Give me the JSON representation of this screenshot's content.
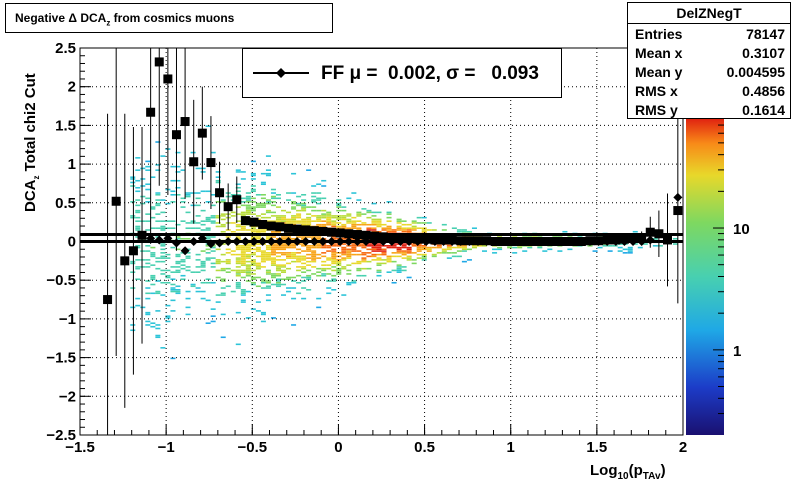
{
  "title": {
    "pre": "Negative ",
    "delta": "Δ",
    "dca": " DCA",
    "sub": "z",
    "post": "  from cosmics muons"
  },
  "stats": {
    "name": "DelZNegT",
    "rows": [
      {
        "key": "Entries",
        "value": "78147"
      },
      {
        "key": "Mean x",
        "value": "0.3107"
      },
      {
        "key": "Mean y",
        "value": "0.004595"
      },
      {
        "key": "RMS x",
        "value": "0.4856"
      },
      {
        "key": "RMS y",
        "value": "0.1614"
      }
    ]
  },
  "legend": {
    "text": "FF μ =  0.002, σ =   0.093"
  },
  "colors": {
    "marker": "#000000",
    "frame": "#000000",
    "grid": "#000000"
  },
  "chart_data": {
    "type": "heatmap",
    "xlabel": "Log10(pTAv)",
    "xlabel_main": "Log",
    "xlabel_sub": "10",
    "xlabel_open": "(p",
    "xlabel_sub2": "TAv",
    "xlabel_close": ")",
    "ylabel": "DCAz  Total chi2 Cut",
    "ylabel_main": "DCA",
    "ylabel_sub": "z",
    "ylabel_post": "  Total chi2 Cut",
    "xlim": [
      -1.5,
      2
    ],
    "ylim": [
      -2.5,
      2.5
    ],
    "x_ticks": [
      -1.5,
      -1,
      -0.5,
      0,
      0.5,
      1,
      1.5,
      2
    ],
    "x_tick_labels": [
      "−1.5",
      "−1",
      "−0.5",
      "0",
      "0.5",
      "1",
      "1.5",
      "2"
    ],
    "y_ticks": [
      -2.5,
      -2,
      -1.5,
      -1,
      -0.5,
      0,
      0.5,
      1,
      1.5,
      2,
      2.5
    ],
    "y_tick_labels": [
      "−2.5",
      "−2",
      "−1.5",
      "−1",
      "−0.5",
      "0",
      "0.5",
      "1",
      "1.5",
      "2",
      "2.5"
    ],
    "grid": true,
    "z_log": true,
    "zlim": [
      0.2,
      80
    ],
    "z_tick_labels": [
      {
        "value": 1,
        "label": "1"
      },
      {
        "value": 10,
        "label": "10"
      }
    ],
    "series": [
      {
        "name": "mean",
        "marker": "square",
        "points": [
          {
            "x": -1.34,
            "y": -0.75,
            "err": 2.4
          },
          {
            "x": -1.29,
            "y": 0.52,
            "err": 2.0
          },
          {
            "x": -1.24,
            "y": -0.25,
            "err": 1.9
          },
          {
            "x": -1.19,
            "y": -0.12,
            "err": 1.6
          },
          {
            "x": -1.14,
            "y": 0.08,
            "err": 1.4
          },
          {
            "x": -1.09,
            "y": 1.67,
            "err": 1.7
          },
          {
            "x": -1.04,
            "y": 2.32,
            "err": 1.6
          },
          {
            "x": -0.99,
            "y": 2.1,
            "err": 1.5
          },
          {
            "x": -0.94,
            "y": 1.38,
            "err": 1.5
          },
          {
            "x": -0.89,
            "y": 1.55,
            "err": 1.0
          },
          {
            "x": -0.84,
            "y": 1.03,
            "err": 0.8
          },
          {
            "x": -0.79,
            "y": 1.4,
            "err": 0.6
          },
          {
            "x": -0.74,
            "y": 1.02,
            "err": 0.6
          },
          {
            "x": -0.69,
            "y": 0.63,
            "err": 0.4
          },
          {
            "x": -0.64,
            "y": 0.45,
            "err": 0.3
          },
          {
            "x": -0.59,
            "y": 0.54,
            "err": 0.3
          },
          {
            "x": -0.54,
            "y": 0.27,
            "err": 0.05
          },
          {
            "x": -0.49,
            "y": 0.25,
            "err": 0.05
          },
          {
            "x": -0.44,
            "y": 0.22,
            "err": 0.04
          },
          {
            "x": -0.39,
            "y": 0.2,
            "err": 0.04
          },
          {
            "x": -0.34,
            "y": 0.19,
            "err": 0.03
          },
          {
            "x": -0.29,
            "y": 0.17,
            "err": 0.03
          },
          {
            "x": -0.24,
            "y": 0.16,
            "err": 0.03
          },
          {
            "x": -0.19,
            "y": 0.15,
            "err": 0.03
          },
          {
            "x": -0.14,
            "y": 0.14,
            "err": 0.02
          },
          {
            "x": -0.09,
            "y": 0.13,
            "err": 0.02
          },
          {
            "x": -0.04,
            "y": 0.12,
            "err": 0.02
          },
          {
            "x": 0.01,
            "y": 0.11,
            "err": 0.02
          },
          {
            "x": 0.06,
            "y": 0.1,
            "err": 0.02
          },
          {
            "x": 0.11,
            "y": 0.09,
            "err": 0.02
          },
          {
            "x": 0.16,
            "y": 0.08,
            "err": 0.02
          },
          {
            "x": 0.21,
            "y": 0.07,
            "err": 0.02
          },
          {
            "x": 0.26,
            "y": 0.06,
            "err": 0.02
          },
          {
            "x": 0.31,
            "y": 0.05,
            "err": 0.02
          },
          {
            "x": 0.36,
            "y": 0.04,
            "err": 0.02
          },
          {
            "x": 0.41,
            "y": 0.04,
            "err": 0.02
          },
          {
            "x": 0.46,
            "y": 0.03,
            "err": 0.02
          },
          {
            "x": 0.51,
            "y": 0.03,
            "err": 0.02
          },
          {
            "x": 0.56,
            "y": 0.02,
            "err": 0.02
          },
          {
            "x": 0.61,
            "y": 0.02,
            "err": 0.02
          },
          {
            "x": 0.66,
            "y": 0.02,
            "err": 0.02
          },
          {
            "x": 0.71,
            "y": 0.01,
            "err": 0.02
          },
          {
            "x": 0.76,
            "y": 0.01,
            "err": 0.02
          },
          {
            "x": 0.81,
            "y": 0.01,
            "err": 0.02
          },
          {
            "x": 0.86,
            "y": 0.01,
            "err": 0.02
          },
          {
            "x": 0.91,
            "y": 0.0,
            "err": 0.02
          },
          {
            "x": 0.96,
            "y": 0.0,
            "err": 0.02
          },
          {
            "x": 1.01,
            "y": 0.0,
            "err": 0.02
          },
          {
            "x": 1.06,
            "y": 0.0,
            "err": 0.02
          },
          {
            "x": 1.11,
            "y": 0.0,
            "err": 0.02
          },
          {
            "x": 1.16,
            "y": 0.0,
            "err": 0.02
          },
          {
            "x": 1.21,
            "y": 0.0,
            "err": 0.02
          },
          {
            "x": 1.26,
            "y": 0.0,
            "err": 0.02
          },
          {
            "x": 1.31,
            "y": 0.0,
            "err": 0.03
          },
          {
            "x": 1.36,
            "y": 0.0,
            "err": 0.03
          },
          {
            "x": 1.41,
            "y": 0.0,
            "err": 0.03
          },
          {
            "x": 1.46,
            "y": 0.01,
            "err": 0.04
          },
          {
            "x": 1.51,
            "y": 0.01,
            "err": 0.04
          },
          {
            "x": 1.56,
            "y": 0.02,
            "err": 0.05
          },
          {
            "x": 1.61,
            "y": 0.02,
            "err": 0.05
          },
          {
            "x": 1.66,
            "y": 0.03,
            "err": 0.06
          },
          {
            "x": 1.71,
            "y": 0.04,
            "err": 0.07
          },
          {
            "x": 1.76,
            "y": 0.05,
            "err": 0.08
          },
          {
            "x": 1.81,
            "y": 0.12,
            "err": 0.2
          },
          {
            "x": 1.86,
            "y": 0.1,
            "err": 0.3
          },
          {
            "x": 1.91,
            "y": 0.02,
            "err": 0.6
          },
          {
            "x": 1.97,
            "y": 0.4,
            "err": 1.2
          }
        ]
      },
      {
        "name": "fit",
        "marker": "diamond",
        "points": [
          {
            "x": -1.34,
            "y": -0.75
          },
          {
            "x": -1.29,
            "y": 0.52
          },
          {
            "x": -1.24,
            "y": -0.25
          },
          {
            "x": -1.19,
            "y": -0.12
          },
          {
            "x": -1.14,
            "y": 0.08
          },
          {
            "x": -1.09,
            "y": 0.04
          },
          {
            "x": -1.04,
            "y": 0.02
          },
          {
            "x": -0.99,
            "y": 0.04
          },
          {
            "x": -0.94,
            "y": -0.02
          },
          {
            "x": -0.89,
            "y": -0.12
          },
          {
            "x": -0.84,
            "y": 0.0
          },
          {
            "x": -0.79,
            "y": 0.04
          },
          {
            "x": -0.74,
            "y": -0.03
          },
          {
            "x": -0.69,
            "y": -0.02
          },
          {
            "x": -0.64,
            "y": 0.0
          },
          {
            "x": -0.59,
            "y": 0.0
          },
          {
            "x": -0.54,
            "y": 0.0
          },
          {
            "x": -0.49,
            "y": 0.0
          },
          {
            "x": -0.44,
            "y": 0.0
          },
          {
            "x": -0.39,
            "y": 0.0
          },
          {
            "x": -0.34,
            "y": 0.0
          },
          {
            "x": -0.29,
            "y": 0.0
          },
          {
            "x": -0.24,
            "y": 0.0
          },
          {
            "x": -0.19,
            "y": 0.0
          },
          {
            "x": -0.14,
            "y": 0.0
          },
          {
            "x": -0.09,
            "y": 0.0
          },
          {
            "x": -0.04,
            "y": 0.0
          },
          {
            "x": 0.01,
            "y": 0.0
          },
          {
            "x": 0.06,
            "y": 0.0
          },
          {
            "x": 0.11,
            "y": 0.0
          },
          {
            "x": 0.16,
            "y": 0.0
          },
          {
            "x": 0.21,
            "y": 0.0
          },
          {
            "x": 0.26,
            "y": 0.0
          },
          {
            "x": 0.31,
            "y": 0.0
          },
          {
            "x": 0.36,
            "y": 0.0
          },
          {
            "x": 0.41,
            "y": 0.0
          },
          {
            "x": 0.46,
            "y": 0.0
          },
          {
            "x": 0.51,
            "y": 0.0
          },
          {
            "x": 0.56,
            "y": 0.0
          },
          {
            "x": 0.61,
            "y": 0.0
          },
          {
            "x": 0.66,
            "y": 0.0
          },
          {
            "x": 0.71,
            "y": 0.0
          },
          {
            "x": 0.76,
            "y": 0.0
          },
          {
            "x": 0.81,
            "y": 0.0
          },
          {
            "x": 0.86,
            "y": 0.0
          },
          {
            "x": 0.91,
            "y": 0.0
          },
          {
            "x": 0.96,
            "y": 0.0
          },
          {
            "x": 1.01,
            "y": 0.0
          },
          {
            "x": 1.06,
            "y": 0.0
          },
          {
            "x": 1.11,
            "y": 0.0
          },
          {
            "x": 1.16,
            "y": 0.0
          },
          {
            "x": 1.21,
            "y": 0.0
          },
          {
            "x": 1.26,
            "y": 0.0
          },
          {
            "x": 1.31,
            "y": 0.0
          },
          {
            "x": 1.36,
            "y": 0.0
          },
          {
            "x": 1.41,
            "y": 0.0
          },
          {
            "x": 1.46,
            "y": 0.0
          },
          {
            "x": 1.51,
            "y": 0.0
          },
          {
            "x": 1.56,
            "y": 0.0
          },
          {
            "x": 1.61,
            "y": 0.0
          },
          {
            "x": 1.66,
            "y": 0.0
          },
          {
            "x": 1.71,
            "y": 0.0
          },
          {
            "x": 1.76,
            "y": 0.0
          },
          {
            "x": 1.81,
            "y": 0.02
          },
          {
            "x": 1.86,
            "y": 0.1
          },
          {
            "x": 1.91,
            "y": 0.02
          },
          {
            "x": 1.97,
            "y": 0.57
          }
        ]
      }
    ],
    "reference_lines": [
      {
        "name": "upper-line",
        "y": 0.09
      },
      {
        "name": "lower-line",
        "y": 0.0
      }
    ]
  }
}
